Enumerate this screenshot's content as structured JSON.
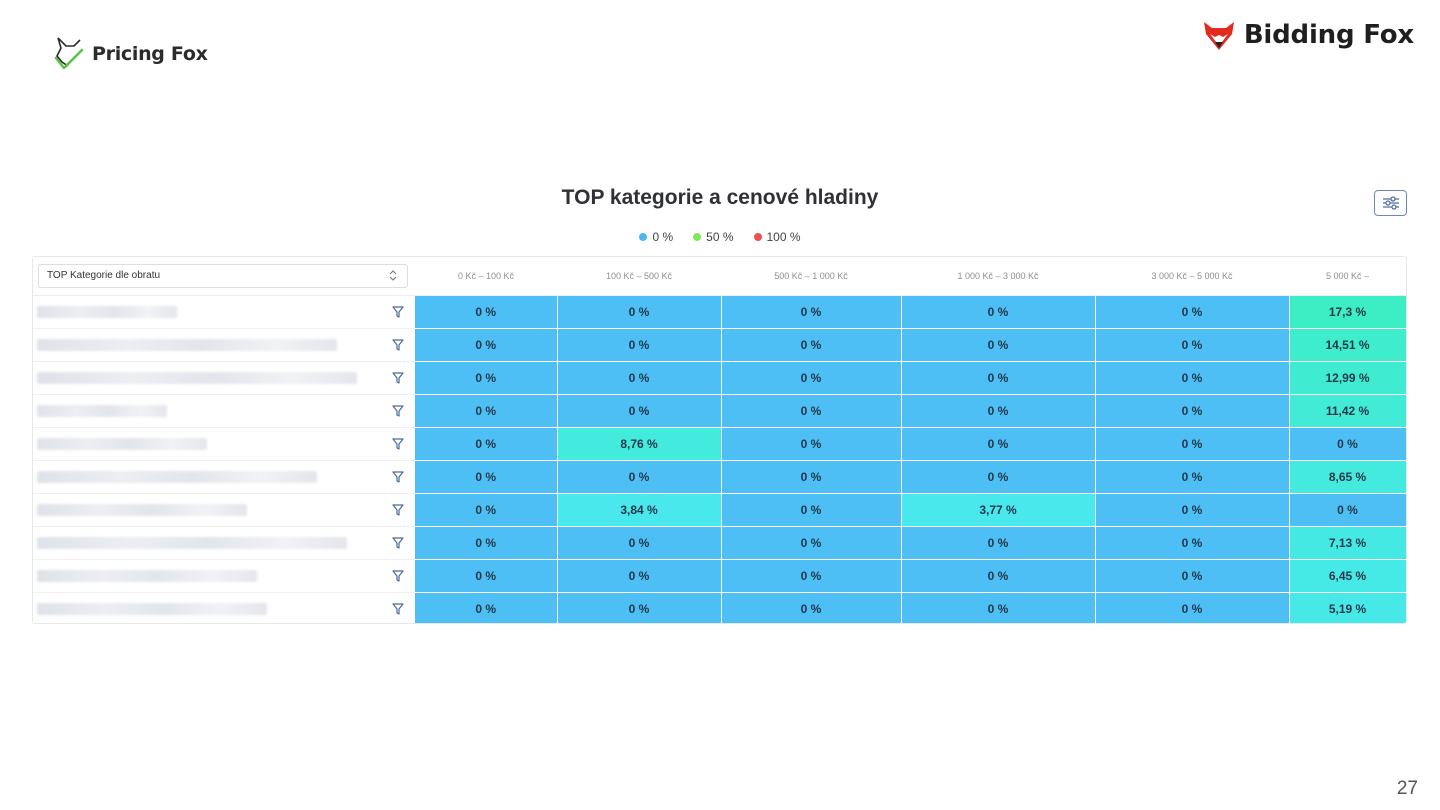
{
  "brand": {
    "left_logo_text": "Pricing Fox",
    "right_logo_text": "Bidding Fox"
  },
  "chart": {
    "title": "TOP kategorie a cenové hladiny",
    "settings_icon": "sliders-icon",
    "legend": [
      {
        "label": "0 %",
        "color": "#4fb3ec"
      },
      {
        "label": "50 %",
        "color": "#7ee85a"
      },
      {
        "label": "100 %",
        "color": "#ee5050"
      }
    ]
  },
  "table": {
    "category_select": "TOP Kategorie dle obratu",
    "columns": [
      "0 Kč – 100 Kč",
      "100 Kč – 500 Kč",
      "500 Kč – 1 000 Kč",
      "1 000 Kč – 3 000 Kč",
      "3 000 Kč – 5 000 Kč",
      "5 000 Kč –"
    ],
    "rows": [
      {
        "values": [
          "0 %",
          "0 %",
          "0 %",
          "0 %",
          "0 %",
          "17,3 %"
        ]
      },
      {
        "values": [
          "0 %",
          "0 %",
          "0 %",
          "0 %",
          "0 %",
          "14,51 %"
        ]
      },
      {
        "values": [
          "0 %",
          "0 %",
          "0 %",
          "0 %",
          "0 %",
          "12,99 %"
        ]
      },
      {
        "values": [
          "0 %",
          "0 %",
          "0 %",
          "0 %",
          "0 %",
          "11,42 %"
        ]
      },
      {
        "values": [
          "0 %",
          "8,76 %",
          "0 %",
          "0 %",
          "0 %",
          "0 %"
        ]
      },
      {
        "values": [
          "0 %",
          "0 %",
          "0 %",
          "0 %",
          "0 %",
          "8,65 %"
        ]
      },
      {
        "values": [
          "0 %",
          "3,84 %",
          "0 %",
          "3,77 %",
          "0 %",
          "0 %"
        ]
      },
      {
        "values": [
          "0 %",
          "0 %",
          "0 %",
          "0 %",
          "0 %",
          "7,13 %"
        ]
      },
      {
        "values": [
          "0 %",
          "0 %",
          "0 %",
          "0 %",
          "0 %",
          "6,45 %"
        ]
      },
      {
        "values": [
          "0 %",
          "0 %",
          "0 %",
          "0 %",
          "0 %",
          "5,19 %"
        ]
      }
    ]
  },
  "page_number": "27"
}
